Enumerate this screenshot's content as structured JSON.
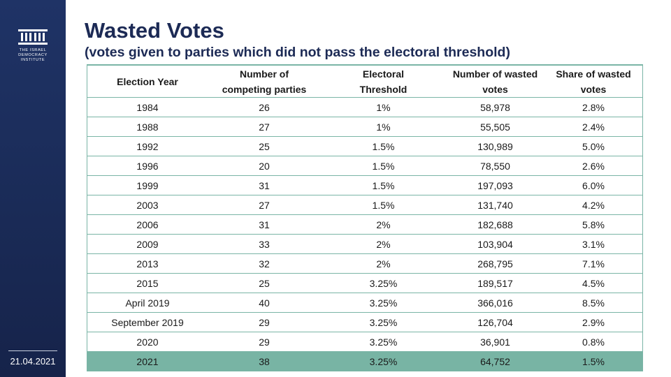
{
  "org": {
    "name_lines": [
      "THE ISRAEL",
      "DEMOCRACY",
      "INSTITUTE"
    ],
    "logo": "building-columns-icon"
  },
  "date": "21.04.2021",
  "title": "Wasted Votes",
  "subtitle": "(votes given to parties which did not pass the electoral threshold)",
  "colors": {
    "sidebar": "#1a2b57",
    "title": "#1c2a55",
    "accent": "#78b4a4"
  },
  "table": {
    "headers": [
      {
        "line1": "Election Year",
        "line2": ""
      },
      {
        "line1": "Number of",
        "line2": "competing parties"
      },
      {
        "line1": "Electoral",
        "line2": "Threshold"
      },
      {
        "line1": "Number of wasted",
        "line2": "votes"
      },
      {
        "line1": "Share of wasted",
        "line2": "votes"
      }
    ],
    "rows": [
      [
        "1984",
        "26",
        "1%",
        "58,978",
        "2.8%"
      ],
      [
        "1988",
        "27",
        "1%",
        "55,505",
        "2.4%"
      ],
      [
        "1992",
        "25",
        "1.5%",
        "130,989",
        "5.0%"
      ],
      [
        "1996",
        "20",
        "1.5%",
        "78,550",
        "2.6%"
      ],
      [
        "1999",
        "31",
        "1.5%",
        "197,093",
        "6.0%"
      ],
      [
        "2003",
        "27",
        "1.5%",
        "131,740",
        "4.2%"
      ],
      [
        "2006",
        "31",
        "2%",
        "182,688",
        "5.8%"
      ],
      [
        "2009",
        "33",
        "2%",
        "103,904",
        "3.1%"
      ],
      [
        "2013",
        "32",
        "2%",
        "268,795",
        "7.1%"
      ],
      [
        "2015",
        "25",
        "3.25%",
        "189,517",
        "4.5%"
      ],
      [
        "April 2019",
        "40",
        "3.25%",
        "366,016",
        "8.5%"
      ],
      [
        "September 2019",
        "29",
        "3.25%",
        "126,704",
        "2.9%"
      ],
      [
        "2020",
        "29",
        "3.25%",
        "36,901",
        "0.8%"
      ],
      [
        "2021",
        "38",
        "3.25%",
        "64,752",
        "1.5%"
      ]
    ],
    "highlight_row": 13
  }
}
